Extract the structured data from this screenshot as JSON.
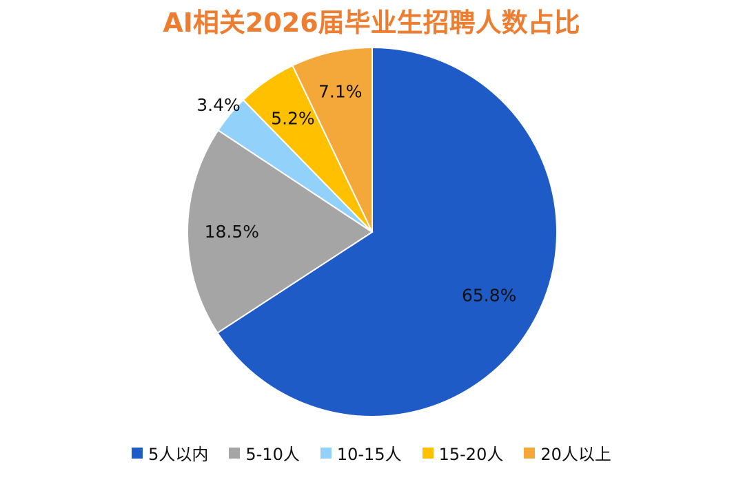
{
  "chart_data": {
    "type": "pie",
    "title": "AI相关2026届毕业生招聘人数占比",
    "categories": [
      "5人以内",
      "5-10人",
      "10-15人",
      "15-20人",
      "20人以上"
    ],
    "values": [
      65.8,
      18.5,
      3.4,
      5.2,
      7.1
    ],
    "labels": [
      "65.8%",
      "18.5%",
      "3.4%",
      "5.2%",
      "7.1%"
    ],
    "colors": [
      "#1F5BC6",
      "#A5A5A5",
      "#91D1FA",
      "#FFC000",
      "#F5A83A"
    ],
    "legend_position": "bottom",
    "title_color": "#ED7D31"
  }
}
